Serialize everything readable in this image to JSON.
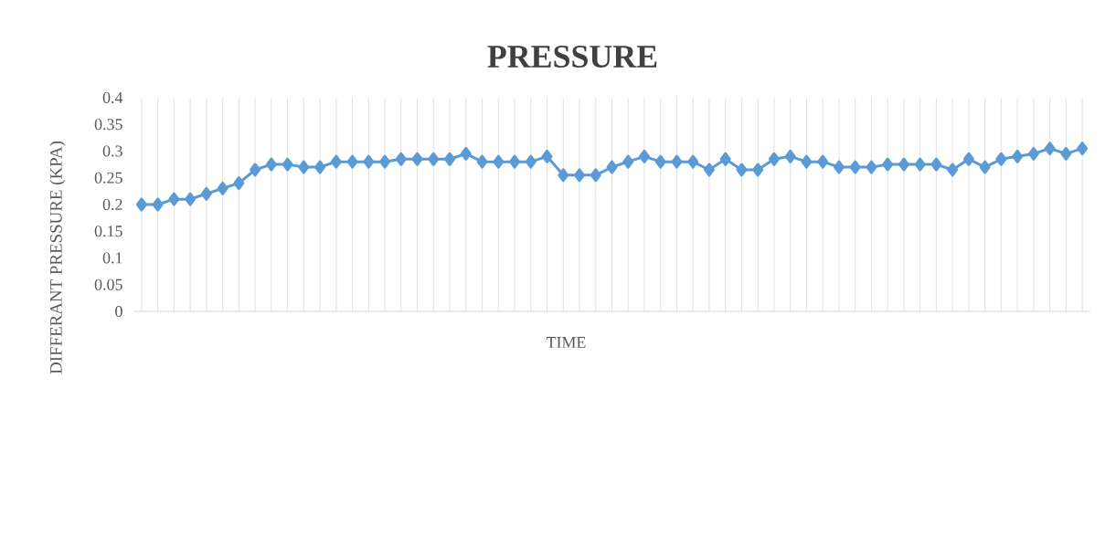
{
  "chart_data": {
    "type": "line",
    "title": "PRESSURE",
    "xlabel": "TIME",
    "ylabel": "DIFFERANT PRESSURE (KPA)",
    "categories": [
      null,
      null,
      null,
      null,
      null,
      null,
      null,
      null,
      null,
      null,
      null,
      null,
      null,
      null,
      null,
      null,
      null,
      null,
      null,
      null,
      null,
      null,
      null,
      null,
      null,
      null,
      null,
      null,
      null,
      null,
      null,
      null,
      null,
      null,
      null,
      null,
      null,
      null,
      null,
      null,
      null,
      null,
      null,
      null,
      null,
      null,
      null,
      null,
      null,
      null,
      null,
      null,
      null,
      null,
      null,
      null,
      null,
      null,
      null
    ],
    "values": [
      0.2,
      0.2,
      0.21,
      0.21,
      0.22,
      0.23,
      0.24,
      0.265,
      0.275,
      0.275,
      0.27,
      0.27,
      0.28,
      0.28,
      0.28,
      0.28,
      0.285,
      0.285,
      0.285,
      0.285,
      0.295,
      0.28,
      0.28,
      0.28,
      0.28,
      0.29,
      0.255,
      0.255,
      0.255,
      0.27,
      0.28,
      0.29,
      0.28,
      0.28,
      0.28,
      0.265,
      0.285,
      0.265,
      0.265,
      0.285,
      0.29,
      0.28,
      0.28,
      0.27,
      0.27,
      0.27,
      0.275,
      0.275,
      0.275,
      0.275,
      0.265,
      0.285,
      0.27,
      0.285,
      0.29,
      0.295,
      0.305,
      0.295,
      0.305
    ],
    "color": "#5b9bd5",
    "ylim": [
      0,
      0.4
    ],
    "yticks": [
      0,
      0.05,
      0.1,
      0.15,
      0.2,
      0.25,
      0.3,
      0.35,
      0.4
    ],
    "grid": "x",
    "marker": "diamond",
    "line_style": "solid"
  }
}
